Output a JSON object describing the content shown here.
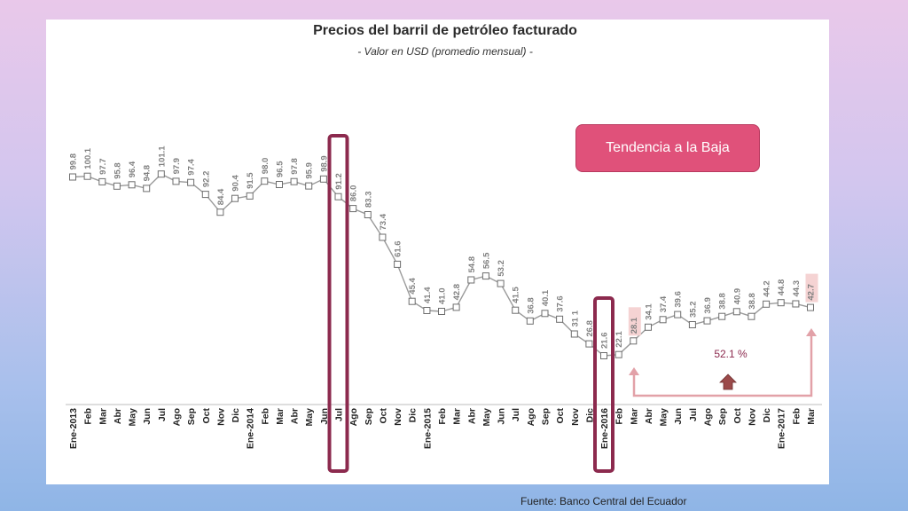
{
  "chart_data": {
    "type": "line",
    "title": "Precios del barril de petróleo facturado",
    "subtitle": "- Valor en USD (promedio mensual) -",
    "categories": [
      "Ene-2013",
      "Feb",
      "Mar",
      "Abr",
      "May",
      "Jun",
      "Jul",
      "Ago",
      "Sep",
      "Oct",
      "Nov",
      "Dic",
      "Ene-2014",
      "Feb",
      "Mar",
      "Abr",
      "May",
      "Jun",
      "Jul",
      "Ago",
      "Sep",
      "Oct",
      "Nov",
      "Dic",
      "Ene-2015",
      "Feb",
      "Mar",
      "Abr",
      "May",
      "Jun",
      "Jul",
      "Ago",
      "Sep",
      "Oct",
      "Nov",
      "Dic",
      "Ene-2016",
      "Feb",
      "Mar",
      "Abr",
      "May",
      "Jun",
      "Jul",
      "Ago",
      "Sep",
      "Oct",
      "Nov",
      "Dic",
      "Ene-2017",
      "Feb",
      "Mar"
    ],
    "values": [
      99.8,
      100.1,
      97.7,
      95.8,
      96.4,
      94.8,
      101.1,
      97.9,
      97.4,
      92.2,
      84.4,
      90.4,
      91.5,
      98.0,
      96.5,
      97.8,
      95.9,
      98.9,
      91.2,
      86.0,
      83.3,
      73.4,
      61.6,
      45.4,
      41.4,
      41.0,
      42.8,
      54.8,
      56.5,
      53.2,
      41.5,
      36.8,
      40.1,
      37.6,
      31.1,
      26.8,
      21.6,
      22.1,
      28.1,
      34.1,
      37.4,
      39.6,
      35.2,
      36.9,
      38.8,
      40.9,
      38.8,
      44.2,
      44.8,
      44.3,
      42.7
    ],
    "value_labels": [
      "99.8",
      "100.1",
      "97.7",
      "95.8",
      "96.4",
      "94.8",
      "101.1",
      "97.9",
      "97.4",
      "92.2",
      "84.4",
      "90.4",
      "91.5",
      "98.0",
      "96.5",
      "97.8",
      "95.9",
      "98.9",
      "91.2",
      "86.0",
      "83.3",
      "73.4",
      "61.6",
      "45.4",
      "41.4",
      "41.0",
      "42.8",
      "54.8",
      "56.5",
      "53.2",
      "41.5",
      "36.8",
      "40.1",
      "37.6",
      "31 1",
      "26.8",
      "21.6",
      "22.1",
      "28.1",
      "34.1",
      "37.4",
      "39.6",
      "35.2",
      "36.9",
      "38.8",
      "40.9",
      "38.8",
      "44.2",
      "44.8",
      "44.3",
      "42.7"
    ],
    "highlighted_indices": [
      18,
      36
    ],
    "shaded_label_indices": [
      38,
      50
    ],
    "ylim": [
      10,
      110
    ],
    "grid": false,
    "colors": {
      "line": "#9a9a9a",
      "highlight_box": "#8c2a4e",
      "shaded_label": "#f5d3d3",
      "bracket": "#e2a1a8",
      "arrow": "#9b4a4a"
    }
  },
  "callout": {
    "text": "Tendencia a la Baja",
    "color": "#e0517a"
  },
  "annotation": {
    "text": "52.1 %"
  },
  "source": {
    "text": "Fuente: Banco Central del Ecuador"
  }
}
